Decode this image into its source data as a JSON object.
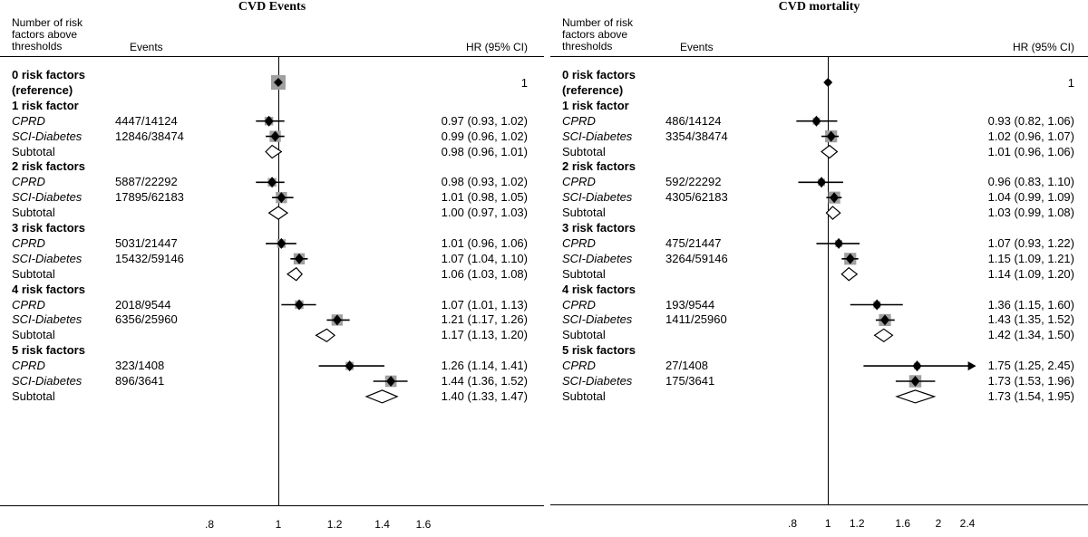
{
  "headers": {
    "risk_label": "Number of risk\nfactors above\nthresholds",
    "events_label": "Events",
    "hr_label": "HR (95% CI)"
  },
  "chart_data": [
    {
      "type": "forest",
      "title": "CVD Events",
      "xscale": "log",
      "xlim": [
        0.78,
        1.62
      ],
      "null_line": 1,
      "ticks": [
        ".8",
        "1",
        "1.2",
        "1.4",
        "1.6"
      ],
      "tick_values": [
        0.8,
        1,
        1.2,
        1.4,
        1.6
      ],
      "rows": [
        {
          "kind": "group",
          "label": "0 risk factors",
          "label2": "(reference)",
          "hr_text": "1",
          "hr": 1,
          "lo": 1,
          "hi": 1,
          "marker": "reference"
        },
        {
          "kind": "group",
          "label": "1 risk factor"
        },
        {
          "kind": "study",
          "label": "CPRD",
          "events": "4447/14124",
          "hr": 0.97,
          "lo": 0.93,
          "hi": 1.02,
          "hr_text": "0.97 (0.93, 1.02)",
          "weight": 0.3
        },
        {
          "kind": "study",
          "label": "SCI-Diabetes",
          "events": "12846/38474",
          "hr": 0.99,
          "lo": 0.96,
          "hi": 1.02,
          "hr_text": "0.99 (0.96, 1.02)",
          "weight": 0.7
        },
        {
          "kind": "subtotal",
          "label": "Subtotal",
          "hr": 0.98,
          "lo": 0.96,
          "hi": 1.01,
          "hr_text": "0.98 (0.96, 1.01)"
        },
        {
          "kind": "group",
          "label": "2 risk factors"
        },
        {
          "kind": "study",
          "label": "CPRD",
          "events": "5887/22292",
          "hr": 0.98,
          "lo": 0.93,
          "hi": 1.02,
          "hr_text": "0.98 (0.93, 1.02)",
          "weight": 0.3
        },
        {
          "kind": "study",
          "label": "SCI-Diabetes",
          "events": "17895/62183",
          "hr": 1.01,
          "lo": 0.98,
          "hi": 1.05,
          "hr_text": "1.01 (0.98, 1.05)",
          "weight": 0.7
        },
        {
          "kind": "subtotal",
          "label": "Subtotal",
          "hr": 1.0,
          "lo": 0.97,
          "hi": 1.03,
          "hr_text": "1.00 (0.97, 1.03)"
        },
        {
          "kind": "group",
          "label": "3 risk factors"
        },
        {
          "kind": "study",
          "label": "CPRD",
          "events": "5031/21447",
          "hr": 1.01,
          "lo": 0.96,
          "hi": 1.06,
          "hr_text": "1.01 (0.96, 1.06)",
          "weight": 0.3
        },
        {
          "kind": "study",
          "label": "SCI-Diabetes",
          "events": "15432/59146",
          "hr": 1.07,
          "lo": 1.04,
          "hi": 1.1,
          "hr_text": "1.07 (1.04, 1.10)",
          "weight": 0.7
        },
        {
          "kind": "subtotal",
          "label": "Subtotal",
          "hr": 1.06,
          "lo": 1.03,
          "hi": 1.08,
          "hr_text": "1.06 (1.03, 1.08)"
        },
        {
          "kind": "group",
          "label": "4 risk factors"
        },
        {
          "kind": "study",
          "label": "CPRD",
          "events": "2018/9544",
          "hr": 1.07,
          "lo": 1.01,
          "hi": 1.13,
          "hr_text": "1.07 (1.01, 1.13)",
          "weight": 0.3
        },
        {
          "kind": "study",
          "label": "SCI-Diabetes",
          "events": "6356/25960",
          "hr": 1.21,
          "lo": 1.17,
          "hi": 1.26,
          "hr_text": "1.21 (1.17, 1.26)",
          "weight": 0.7
        },
        {
          "kind": "subtotal",
          "label": "Subtotal",
          "hr": 1.17,
          "lo": 1.13,
          "hi": 1.2,
          "hr_text": "1.17 (1.13, 1.20)"
        },
        {
          "kind": "group",
          "label": "5 risk factors"
        },
        {
          "kind": "study",
          "label": "CPRD",
          "events": "323/1408",
          "hr": 1.26,
          "lo": 1.14,
          "hi": 1.41,
          "hr_text": "1.26 (1.14, 1.41)",
          "weight": 0.25
        },
        {
          "kind": "study",
          "label": "SCI-Diabetes",
          "events": "896/3641",
          "hr": 1.44,
          "lo": 1.36,
          "hi": 1.52,
          "hr_text": "1.44 (1.36, 1.52)",
          "weight": 0.75
        },
        {
          "kind": "subtotal",
          "label": "Subtotal",
          "hr": 1.4,
          "lo": 1.33,
          "hi": 1.47,
          "hr_text": "1.40 (1.33, 1.47)"
        }
      ]
    },
    {
      "type": "forest",
      "title": "CVD mortality",
      "xscale": "log",
      "xlim": [
        0.76,
        2.5
      ],
      "null_line": 1,
      "ticks": [
        ".8",
        "1",
        "1.2",
        "1.6",
        "2",
        "2.4"
      ],
      "tick_values": [
        0.8,
        1,
        1.2,
        1.6,
        2,
        2.4
      ],
      "rows": [
        {
          "kind": "group",
          "label": "0 risk factors",
          "label2": "(reference)",
          "hr_text": "1",
          "hr": 1,
          "lo": 1,
          "hi": 1,
          "marker": "reference"
        },
        {
          "kind": "group",
          "label": "1 risk factor"
        },
        {
          "kind": "study",
          "label": "CPRD",
          "events": "486/14124",
          "hr": 0.93,
          "lo": 0.82,
          "hi": 1.06,
          "hr_text": "0.93 (0.82, 1.06)",
          "weight": 0.15
        },
        {
          "kind": "study",
          "label": "SCI-Diabetes",
          "events": "3354/38474",
          "hr": 1.02,
          "lo": 0.96,
          "hi": 1.07,
          "hr_text": "1.02 (0.96, 1.07)",
          "weight": 0.85
        },
        {
          "kind": "subtotal",
          "label": "Subtotal",
          "hr": 1.01,
          "lo": 0.96,
          "hi": 1.06,
          "hr_text": "1.01 (0.96, 1.06)"
        },
        {
          "kind": "group",
          "label": "2 risk factors"
        },
        {
          "kind": "study",
          "label": "CPRD",
          "events": "592/22292",
          "hr": 0.96,
          "lo": 0.83,
          "hi": 1.1,
          "hr_text": "0.96 (0.83, 1.10)",
          "weight": 0.15
        },
        {
          "kind": "study",
          "label": "SCI-Diabetes",
          "events": "4305/62183",
          "hr": 1.04,
          "lo": 0.99,
          "hi": 1.09,
          "hr_text": "1.04 (0.99, 1.09)",
          "weight": 0.85
        },
        {
          "kind": "subtotal",
          "label": "Subtotal",
          "hr": 1.03,
          "lo": 0.99,
          "hi": 1.08,
          "hr_text": "1.03 (0.99, 1.08)"
        },
        {
          "kind": "group",
          "label": "3 risk factors"
        },
        {
          "kind": "study",
          "label": "CPRD",
          "events": "475/21447",
          "hr": 1.07,
          "lo": 0.93,
          "hi": 1.22,
          "hr_text": "1.07 (0.93, 1.22)",
          "weight": 0.15
        },
        {
          "kind": "study",
          "label": "SCI-Diabetes",
          "events": "3264/59146",
          "hr": 1.15,
          "lo": 1.09,
          "hi": 1.21,
          "hr_text": "1.15 (1.09, 1.21)",
          "weight": 0.85
        },
        {
          "kind": "subtotal",
          "label": "Subtotal",
          "hr": 1.14,
          "lo": 1.09,
          "hi": 1.2,
          "hr_text": "1.14 (1.09, 1.20)"
        },
        {
          "kind": "group",
          "label": "4 risk factors"
        },
        {
          "kind": "study",
          "label": "CPRD",
          "events": "193/9544",
          "hr": 1.36,
          "lo": 1.15,
          "hi": 1.6,
          "hr_text": "1.36 (1.15, 1.60)",
          "weight": 0.15
        },
        {
          "kind": "study",
          "label": "SCI-Diabetes",
          "events": "1411/25960",
          "hr": 1.43,
          "lo": 1.35,
          "hi": 1.52,
          "hr_text": "1.43 (1.35, 1.52)",
          "weight": 0.85
        },
        {
          "kind": "subtotal",
          "label": "Subtotal",
          "hr": 1.42,
          "lo": 1.34,
          "hi": 1.5,
          "hr_text": "1.42 (1.34, 1.50)"
        },
        {
          "kind": "group",
          "label": "5 risk factors"
        },
        {
          "kind": "study",
          "label": "CPRD",
          "events": "27/1408",
          "hr": 1.75,
          "lo": 1.25,
          "hi": 2.45,
          "hr_text": "1.75 (1.25, 2.45)",
          "weight": 0.1,
          "arrow": true
        },
        {
          "kind": "study",
          "label": "SCI-Diabetes",
          "events": "175/3641",
          "hr": 1.73,
          "lo": 1.53,
          "hi": 1.96,
          "hr_text": "1.73 (1.53, 1.96)",
          "weight": 0.9
        },
        {
          "kind": "subtotal",
          "label": "Subtotal",
          "hr": 1.73,
          "lo": 1.54,
          "hi": 1.95,
          "hr_text": "1.73 (1.54, 1.95)"
        }
      ]
    }
  ]
}
